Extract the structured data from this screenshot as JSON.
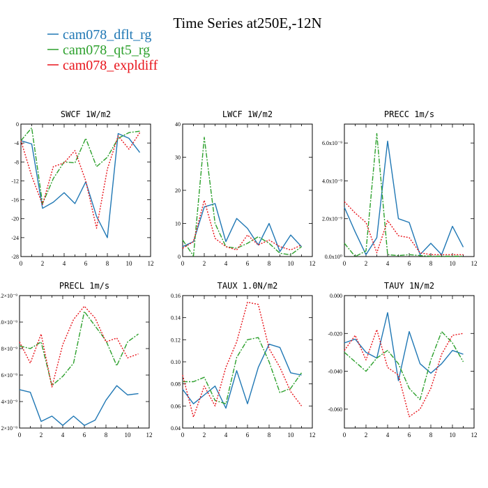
{
  "title": "Time Series at250E,-12N",
  "legend": [
    {
      "name": "cam078_dflt_rg",
      "color": "#1f77b4",
      "dash": "solid"
    },
    {
      "name": "cam078_qt5_rg",
      "color": "#2ca02c",
      "dash": "dashdot"
    },
    {
      "name": "cam078_expldiff",
      "color": "#e8131a",
      "dash": "dotted"
    }
  ],
  "chart_data": [
    {
      "type": "line",
      "title": "SWCF   1W/m2",
      "x": [
        0,
        1,
        2,
        3,
        4,
        5,
        6,
        7,
        8,
        9,
        10,
        11
      ],
      "xlim": [
        0,
        12
      ],
      "ylim": [
        -28,
        0
      ],
      "xticks": [
        "0",
        "2",
        "4",
        "6",
        "8",
        "10",
        "12"
      ],
      "yticks": [
        0,
        -4,
        -8,
        -12,
        -16,
        -20,
        -24,
        -28
      ],
      "ytick_labels": [
        "0",
        "-4",
        "-8",
        "-12",
        "-16",
        "-20",
        "-24",
        "-28"
      ],
      "series": [
        {
          "name": "cam078_dflt_rg",
          "values": [
            -3.5,
            -4.2,
            -17.8,
            -16.5,
            -14.5,
            -16.8,
            -12.2,
            -19.5,
            -24,
            -2,
            -3,
            -6
          ]
        },
        {
          "name": "cam078_qt5_rg",
          "values": [
            -3.5,
            -0.8,
            -16.8,
            -11.5,
            -8,
            -8.2,
            -3,
            -9,
            -7,
            -3,
            -1.8,
            -1.5
          ]
        },
        {
          "name": "cam078_expldiff",
          "values": [
            -3.5,
            -11,
            -17,
            -9,
            -8.2,
            -5.6,
            -12,
            -22,
            -9.5,
            -2.5,
            -5.3,
            -1.8
          ]
        }
      ]
    },
    {
      "type": "line",
      "title": "LWCF   1W/m2",
      "x": [
        0,
        1,
        2,
        3,
        4,
        5,
        6,
        7,
        8,
        9,
        10,
        11
      ],
      "xlim": [
        0,
        12
      ],
      "ylim": [
        0,
        40
      ],
      "xticks": [
        "0",
        "2",
        "4",
        "6",
        "8",
        "10",
        "12"
      ],
      "yticks": [
        0,
        10,
        20,
        30,
        40
      ],
      "ytick_labels": [
        "0",
        "10",
        "20",
        "30",
        "40"
      ],
      "series": [
        {
          "name": "cam078_dflt_rg",
          "values": [
            3,
            4.5,
            15,
            16,
            4.5,
            11.5,
            8.5,
            3.5,
            10,
            1.5,
            6.5,
            3
          ]
        },
        {
          "name": "cam078_qt5_rg",
          "values": [
            5,
            0.2,
            36,
            10,
            3,
            2.5,
            4,
            6,
            4,
            1,
            0.5,
            3
          ]
        },
        {
          "name": "cam078_expldiff",
          "values": [
            2.5,
            4.5,
            17,
            5.5,
            3,
            2,
            6.5,
            3.5,
            5,
            3,
            2,
            3.5
          ]
        }
      ]
    },
    {
      "type": "line",
      "title": "PRECC   1m/s",
      "x": [
        0,
        1,
        2,
        3,
        4,
        5,
        6,
        7,
        8,
        9,
        10,
        11
      ],
      "xlim": [
        0,
        12
      ],
      "ylim": [
        0,
        7e-09
      ],
      "xticks": [
        "0",
        "2",
        "4",
        "6",
        "8",
        "10",
        "12"
      ],
      "yticks": [
        0,
        2e-09,
        4e-09,
        6e-09
      ],
      "ytick_labels": [
        "0.0x10⁰",
        "2.0x10⁻⁹",
        "4.0x10⁻⁹",
        "6.0x10⁻⁹"
      ],
      "series": [
        {
          "name": "cam078_dflt_rg",
          "values": [
            2.6e-09,
            1.3e-09,
            1e-10,
            1e-09,
            6.1e-09,
            2e-09,
            1.8e-09,
            1e-10,
            7e-10,
            1e-10,
            1.6e-09,
            5e-10
          ]
        },
        {
          "name": "cam078_qt5_rg",
          "values": [
            7e-10,
            0,
            3e-10,
            6.5e-09,
            1e-10,
            5e-11,
            1e-10,
            5e-11,
            2e-11,
            2e-11,
            2e-11,
            2e-11
          ]
        },
        {
          "name": "cam078_expldiff",
          "values": [
            2.9e-09,
            2.3e-09,
            1.8e-09,
            2e-10,
            1.9e-09,
            1.1e-09,
            1e-09,
            2e-10,
            1e-10,
            1e-10,
            1e-10,
            1e-10
          ]
        }
      ]
    },
    {
      "type": "line",
      "title": "PRECL   1m/s",
      "x": [
        0,
        1,
        2,
        3,
        4,
        5,
        6,
        7,
        8,
        9,
        10,
        11
      ],
      "xlim": [
        0,
        12
      ],
      "ylim": [
        2e-09,
        1.2e-08
      ],
      "xticks": [
        "0",
        "2",
        "4",
        "6",
        "8",
        "10",
        "12"
      ],
      "yticks": [
        2e-09,
        4e-09,
        6e-09,
        8e-09,
        1e-08,
        1.2e-08
      ],
      "ytick_labels": [
        "2×10⁻⁹",
        "4×10⁻⁹",
        "6×10⁻⁹",
        "8×10⁻⁹",
        "10×10⁻⁹",
        "12×10⁻⁹"
      ],
      "series": [
        {
          "name": "cam078_dflt_rg",
          "values": [
            4.9e-09,
            4.7e-09,
            2.5e-09,
            2.9e-09,
            2.2e-09,
            2.9e-09,
            2.2e-09,
            2.6e-09,
            4.1e-09,
            5.2e-09,
            4.5e-09,
            4.6e-09
          ]
        },
        {
          "name": "cam078_qt5_rg",
          "values": [
            8.2e-09,
            8e-09,
            8.5e-09,
            5.2e-09,
            5.9e-09,
            6.9e-09,
            1.08e-08,
            9.7e-09,
            8.6e-09,
            6.7e-09,
            8.5e-09,
            9.1e-09
          ]
        },
        {
          "name": "cam078_expldiff",
          "values": [
            8.5e-09,
            6.9e-09,
            9.1e-09,
            5.1e-09,
            8.3e-09,
            1.02e-08,
            1.12e-08,
            1.03e-08,
            8.5e-09,
            8.8e-09,
            7.3e-09,
            7.6e-09
          ]
        }
      ]
    },
    {
      "type": "line",
      "title": "TAUX   1.0N/m2",
      "x": [
        0,
        1,
        2,
        3,
        4,
        5,
        6,
        7,
        8,
        9,
        10,
        11
      ],
      "xlim": [
        0,
        12
      ],
      "ylim": [
        0.04,
        0.16
      ],
      "xticks": [
        "0",
        "2",
        "4",
        "6",
        "8",
        "10",
        "12"
      ],
      "yticks": [
        0.04,
        0.06,
        0.08,
        0.1,
        0.12,
        0.14,
        0.16
      ],
      "ytick_labels": [
        "0.04",
        "0.06",
        "0.08",
        "0.10",
        "0.12",
        "0.14",
        "0.16"
      ],
      "series": [
        {
          "name": "cam078_dflt_rg",
          "values": [
            0.075,
            0.062,
            0.07,
            0.078,
            0.058,
            0.092,
            0.062,
            0.095,
            0.116,
            0.113,
            0.09,
            0.088
          ]
        },
        {
          "name": "cam078_qt5_rg",
          "values": [
            0.082,
            0.082,
            0.086,
            0.065,
            0.062,
            0.104,
            0.12,
            0.122,
            0.1,
            0.072,
            0.076,
            0.09
          ]
        },
        {
          "name": "cam078_expldiff",
          "values": [
            0.088,
            0.05,
            0.078,
            0.06,
            0.095,
            0.118,
            0.154,
            0.152,
            0.112,
            0.095,
            0.073,
            0.06
          ]
        }
      ]
    },
    {
      "type": "line",
      "title": "TAUY   1N/m2",
      "x": [
        0,
        1,
        2,
        3,
        4,
        5,
        6,
        7,
        8,
        9,
        10,
        11
      ],
      "xlim": [
        0,
        12
      ],
      "ylim": [
        -0.07,
        0
      ],
      "xticks": [
        "0",
        "2",
        "4",
        "6",
        "8",
        "10",
        "12"
      ],
      "yticks": [
        0,
        -0.02,
        -0.04,
        -0.06
      ],
      "ytick_labels": [
        "0.000",
        "-0.020",
        "-0.040",
        "-0.060"
      ],
      "series": [
        {
          "name": "cam078_dflt_rg",
          "values": [
            -0.025,
            -0.023,
            -0.03,
            -0.033,
            -0.009,
            -0.045,
            -0.019,
            -0.036,
            -0.041,
            -0.036,
            -0.029,
            -0.031
          ]
        },
        {
          "name": "cam078_qt5_rg",
          "values": [
            -0.03,
            -0.035,
            -0.04,
            -0.033,
            -0.029,
            -0.036,
            -0.049,
            -0.055,
            -0.034,
            -0.019,
            -0.025,
            -0.035
          ]
        },
        {
          "name": "cam078_expldiff",
          "values": [
            -0.029,
            -0.021,
            -0.034,
            -0.018,
            -0.038,
            -0.042,
            -0.064,
            -0.06,
            -0.049,
            -0.031,
            -0.021,
            -0.02
          ]
        }
      ]
    }
  ]
}
